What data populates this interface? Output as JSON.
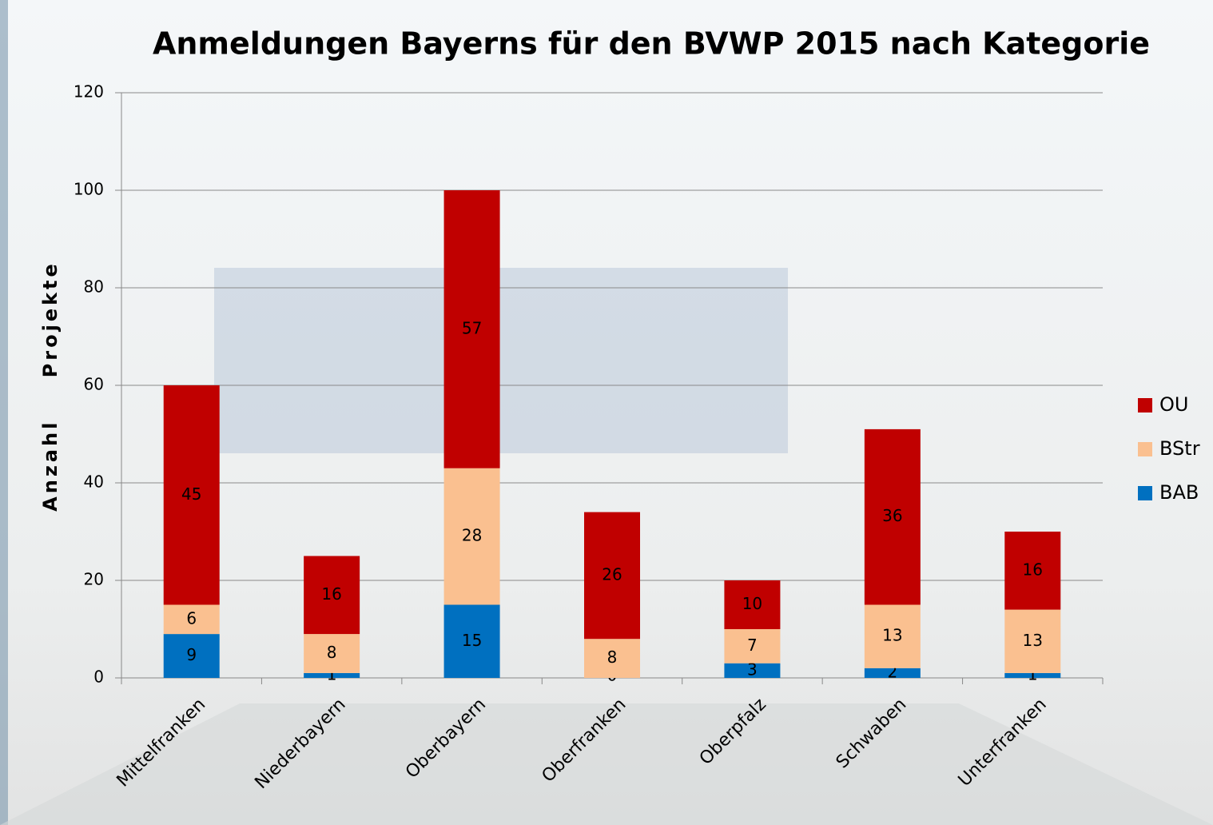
{
  "chart_data": {
    "type": "stacked_bar",
    "title": "Anmeldungen Bayerns für den BVWP 2015 nach Kategorie",
    "y_label": "Anzahl Projekte",
    "categories": [
      "Mittelfranken",
      "Niederbayern",
      "Oberbayern",
      "Oberfranken",
      "Oberpfalz",
      "Schwaben",
      "Unterfranken"
    ],
    "series": [
      {
        "name": "BAB",
        "color": "#0070c0",
        "values": [
          9,
          1,
          15,
          0,
          3,
          2,
          1
        ]
      },
      {
        "name": "BStr",
        "color": "#fac090",
        "values": [
          6,
          8,
          28,
          8,
          7,
          13,
          13
        ]
      },
      {
        "name": "OU",
        "color": "#c00000",
        "values": [
          45,
          16,
          57,
          26,
          10,
          36,
          16
        ]
      }
    ],
    "ylim": [
      0,
      120
    ],
    "yticks": [
      0,
      20,
      40,
      60,
      80,
      100,
      120
    ],
    "grid": true,
    "legend": "right"
  }
}
